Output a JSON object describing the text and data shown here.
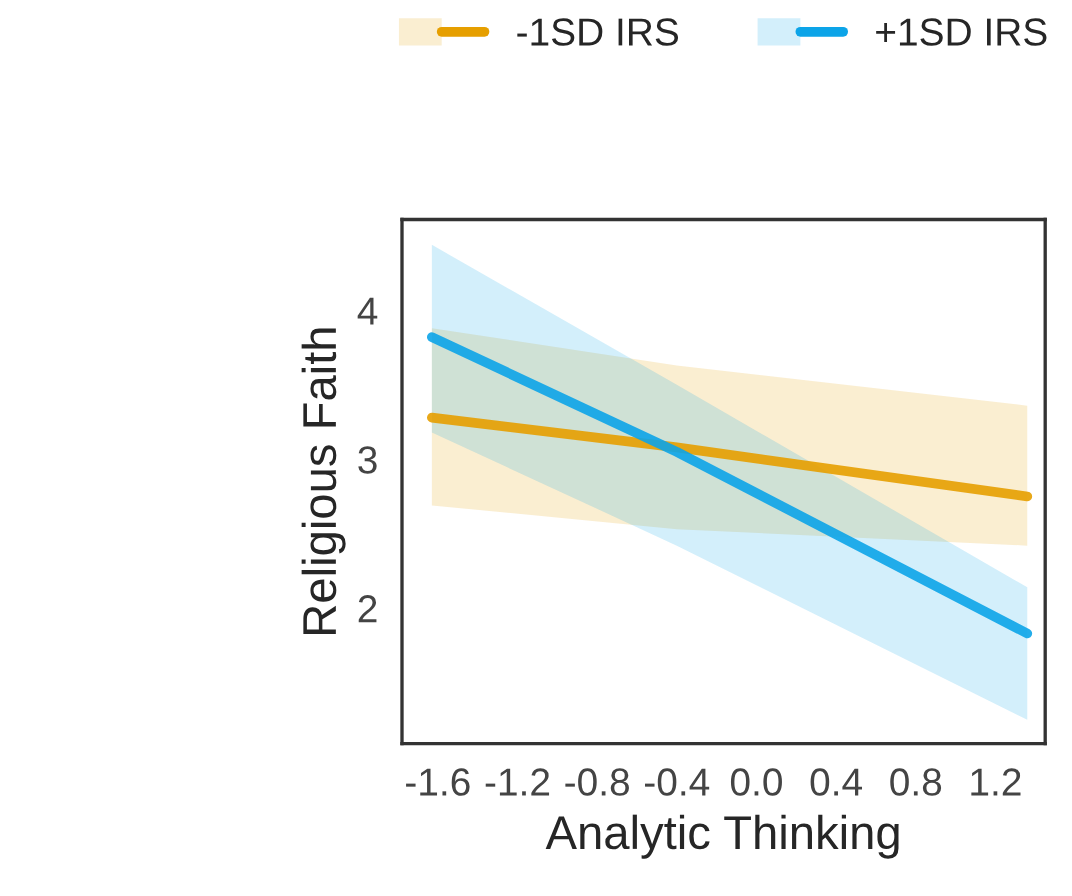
{
  "chart_data": {
    "type": "line",
    "xlabel": "Analytic Thinking",
    "ylabel": "Religious Faith",
    "x": [
      -1.63,
      -0.4,
      1.36
    ],
    "series": [
      {
        "name": "-1SD IRS",
        "color": "#e69f00",
        "values": [
          3.28,
          3.08,
          2.75
        ],
        "lower": [
          2.69,
          2.53,
          2.42
        ],
        "upper": [
          3.88,
          3.63,
          3.36
        ]
      },
      {
        "name": "+1SD IRS",
        "color": "#0ca4e8",
        "values": [
          3.82,
          3.05,
          1.83
        ],
        "lower": [
          3.18,
          2.42,
          1.25
        ],
        "upper": [
          4.44,
          3.5,
          2.14
        ]
      }
    ],
    "xlim": [
      -1.78,
      1.45
    ],
    "ylim": [
      1.09,
      4.61
    ],
    "xticks": [
      {
        "value": -1.6,
        "label": "-1.6"
      },
      {
        "value": -1.2,
        "label": "-1.2"
      },
      {
        "value": -0.8,
        "label": "-0.8"
      },
      {
        "value": -0.4,
        "label": "-0.4"
      },
      {
        "value": 0.0,
        "label": "0.0"
      },
      {
        "value": 0.4,
        "label": "0.4"
      },
      {
        "value": 0.8,
        "label": "0.8"
      },
      {
        "value": 1.2,
        "label": "1.2"
      }
    ],
    "yticks": [
      2,
      3,
      4
    ],
    "grid": false,
    "legend": "top",
    "marker": "none",
    "line_style": "solid"
  }
}
